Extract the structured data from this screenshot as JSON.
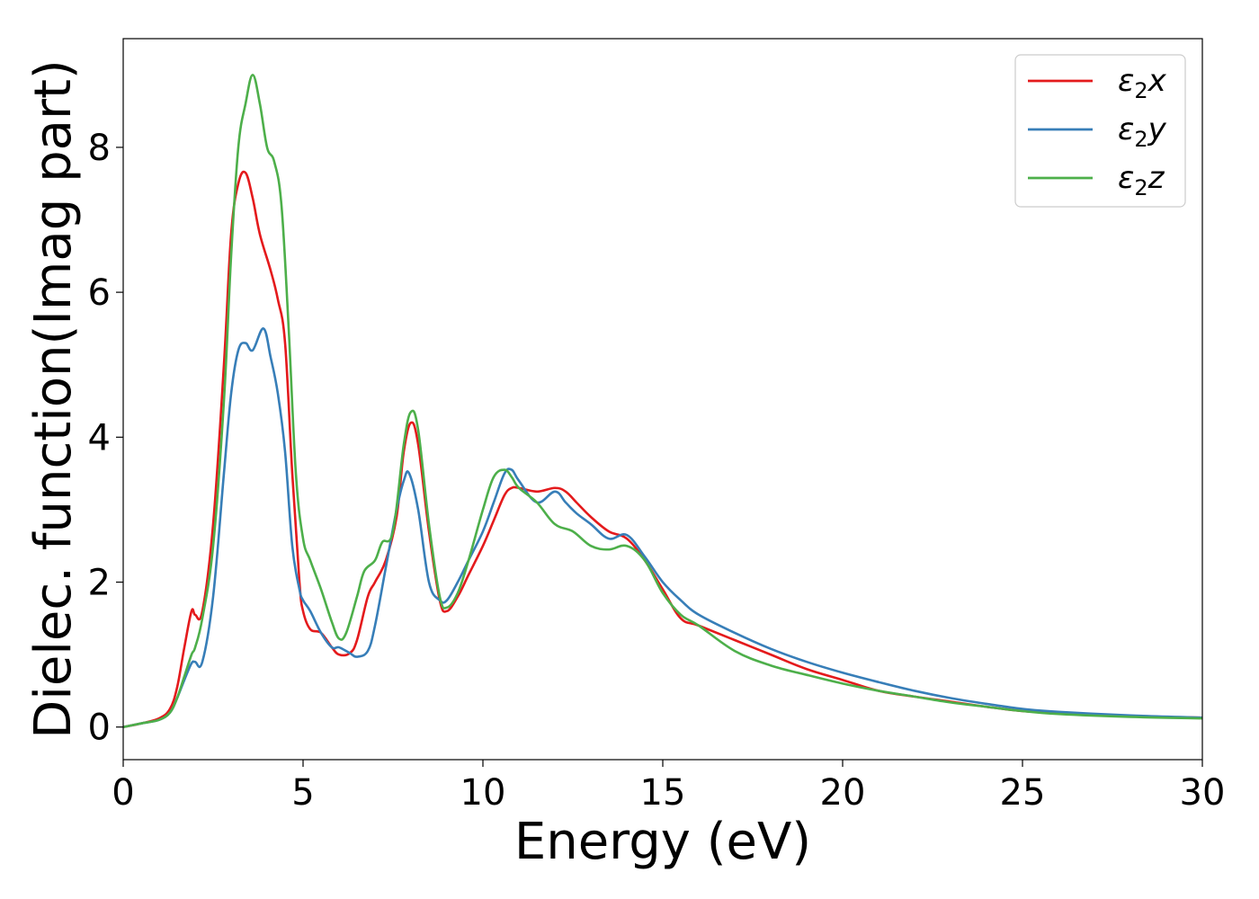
{
  "chart_data": {
    "type": "line",
    "xlabel": "Energy (eV)",
    "ylabel": "Dielec. function(Imag part)",
    "xlim": [
      0,
      30
    ],
    "ylim": [
      -0.45,
      9.5
    ],
    "xticks": [
      0,
      5,
      10,
      15,
      20,
      25,
      30
    ],
    "xtick_labels": [
      "0",
      "5",
      "10",
      "15",
      "20",
      "25",
      "30"
    ],
    "yticks": [
      0,
      2,
      4,
      6,
      8
    ],
    "ytick_labels": [
      "0",
      "2",
      "4",
      "6",
      "8"
    ],
    "grid": false,
    "legend_position": "top-right",
    "series": [
      {
        "name": "ε2x",
        "symbol": "ε",
        "subscript": "2",
        "axis": "x",
        "color": "#e41a1c",
        "x": [
          0,
          0.5,
          1.0,
          1.3,
          1.5,
          1.7,
          1.9,
          2.0,
          2.2,
          2.5,
          2.8,
          3.0,
          3.2,
          3.4,
          3.6,
          3.8,
          4.1,
          4.3,
          4.5,
          4.7,
          4.9,
          5.0,
          5.2,
          5.5,
          5.8,
          6.0,
          6.3,
          6.5,
          6.8,
          7.0,
          7.3,
          7.6,
          7.8,
          8.0,
          8.2,
          8.5,
          8.8,
          9.0,
          9.3,
          9.6,
          10.0,
          10.3,
          10.6,
          10.8,
          11.0,
          11.5,
          12.0,
          12.3,
          12.6,
          13.0,
          13.5,
          14.0,
          14.5,
          15.0,
          15.5,
          16.0,
          17.0,
          18.0,
          19.0,
          20.0,
          21.0,
          22.0,
          23.0,
          24.0,
          25.0,
          26.0,
          28.0,
          30.0
        ],
        "values": [
          0,
          0.05,
          0.12,
          0.25,
          0.55,
          1.1,
          1.6,
          1.55,
          1.6,
          2.8,
          5.0,
          6.8,
          7.5,
          7.65,
          7.3,
          6.8,
          6.3,
          5.9,
          5.3,
          3.5,
          2.0,
          1.6,
          1.35,
          1.3,
          1.1,
          1.0,
          1.02,
          1.2,
          1.8,
          2.0,
          2.3,
          2.9,
          3.8,
          4.2,
          3.9,
          2.7,
          1.75,
          1.6,
          1.8,
          2.1,
          2.5,
          2.85,
          3.2,
          3.3,
          3.3,
          3.25,
          3.3,
          3.25,
          3.1,
          2.9,
          2.7,
          2.6,
          2.3,
          1.9,
          1.5,
          1.4,
          1.2,
          1.0,
          0.8,
          0.65,
          0.5,
          0.42,
          0.35,
          0.28,
          0.22,
          0.19,
          0.15,
          0.13
        ]
      },
      {
        "name": "ε2y",
        "symbol": "ε",
        "subscript": "2",
        "axis": "y",
        "color": "#377eb8",
        "x": [
          0,
          0.5,
          1.0,
          1.3,
          1.5,
          1.7,
          1.9,
          2.0,
          2.2,
          2.5,
          2.8,
          3.0,
          3.2,
          3.4,
          3.6,
          3.9,
          4.1,
          4.3,
          4.5,
          4.7,
          4.9,
          5.0,
          5.2,
          5.5,
          5.8,
          6.0,
          6.3,
          6.5,
          6.8,
          7.0,
          7.3,
          7.6,
          7.8,
          7.95,
          8.2,
          8.5,
          8.8,
          9.0,
          9.3,
          9.6,
          10.0,
          10.3,
          10.6,
          10.8,
          11.0,
          11.5,
          12.0,
          12.3,
          12.6,
          13.0,
          13.5,
          14.0,
          14.5,
          15.0,
          15.5,
          16.0,
          17.0,
          18.0,
          19.0,
          20.0,
          21.0,
          22.0,
          23.0,
          24.0,
          25.0,
          26.0,
          28.0,
          30.0
        ],
        "values": [
          0,
          0.05,
          0.1,
          0.2,
          0.4,
          0.65,
          0.88,
          0.9,
          0.9,
          1.8,
          3.5,
          4.6,
          5.2,
          5.3,
          5.2,
          5.5,
          5.1,
          4.6,
          3.8,
          2.5,
          1.9,
          1.75,
          1.6,
          1.3,
          1.1,
          1.1,
          1.02,
          0.97,
          1.05,
          1.4,
          2.2,
          3.0,
          3.4,
          3.5,
          3.0,
          2.0,
          1.75,
          1.75,
          2.0,
          2.3,
          2.7,
          3.1,
          3.5,
          3.55,
          3.4,
          3.1,
          3.25,
          3.1,
          2.95,
          2.8,
          2.6,
          2.65,
          2.35,
          2.0,
          1.75,
          1.55,
          1.3,
          1.08,
          0.9,
          0.75,
          0.62,
          0.5,
          0.4,
          0.32,
          0.25,
          0.21,
          0.16,
          0.13
        ]
      },
      {
        "name": "ε2z",
        "symbol": "ε",
        "subscript": "2",
        "axis": "z",
        "color": "#4daf4a",
        "x": [
          0,
          0.5,
          1.0,
          1.3,
          1.5,
          1.7,
          1.9,
          2.0,
          2.2,
          2.5,
          2.8,
          3.0,
          3.2,
          3.4,
          3.6,
          3.8,
          4.0,
          4.2,
          4.4,
          4.6,
          4.8,
          5.0,
          5.2,
          5.5,
          5.8,
          6.0,
          6.2,
          6.5,
          6.7,
          7.0,
          7.2,
          7.5,
          7.8,
          8.0,
          8.2,
          8.5,
          8.8,
          9.0,
          9.3,
          9.6,
          10.0,
          10.3,
          10.6,
          10.8,
          11.0,
          11.5,
          12.0,
          12.5,
          13.0,
          13.5,
          14.0,
          14.5,
          15.0,
          15.5,
          16.0,
          17.0,
          18.0,
          19.0,
          20.0,
          21.0,
          22.0,
          23.0,
          24.0,
          25.0,
          26.0,
          28.0,
          30.0
        ],
        "values": [
          0,
          0.05,
          0.1,
          0.2,
          0.4,
          0.7,
          1.0,
          1.1,
          1.5,
          2.5,
          4.5,
          6.5,
          8.0,
          8.6,
          9.0,
          8.6,
          8.0,
          7.8,
          7.2,
          5.5,
          3.5,
          2.6,
          2.3,
          1.9,
          1.45,
          1.22,
          1.3,
          1.8,
          2.15,
          2.3,
          2.55,
          2.7,
          3.9,
          4.35,
          4.1,
          2.8,
          1.8,
          1.65,
          1.85,
          2.3,
          3.0,
          3.45,
          3.55,
          3.45,
          3.3,
          3.1,
          2.8,
          2.7,
          2.5,
          2.45,
          2.5,
          2.3,
          1.85,
          1.55,
          1.4,
          1.05,
          0.85,
          0.72,
          0.6,
          0.5,
          0.42,
          0.34,
          0.28,
          0.22,
          0.18,
          0.14,
          0.12
        ]
      }
    ]
  }
}
